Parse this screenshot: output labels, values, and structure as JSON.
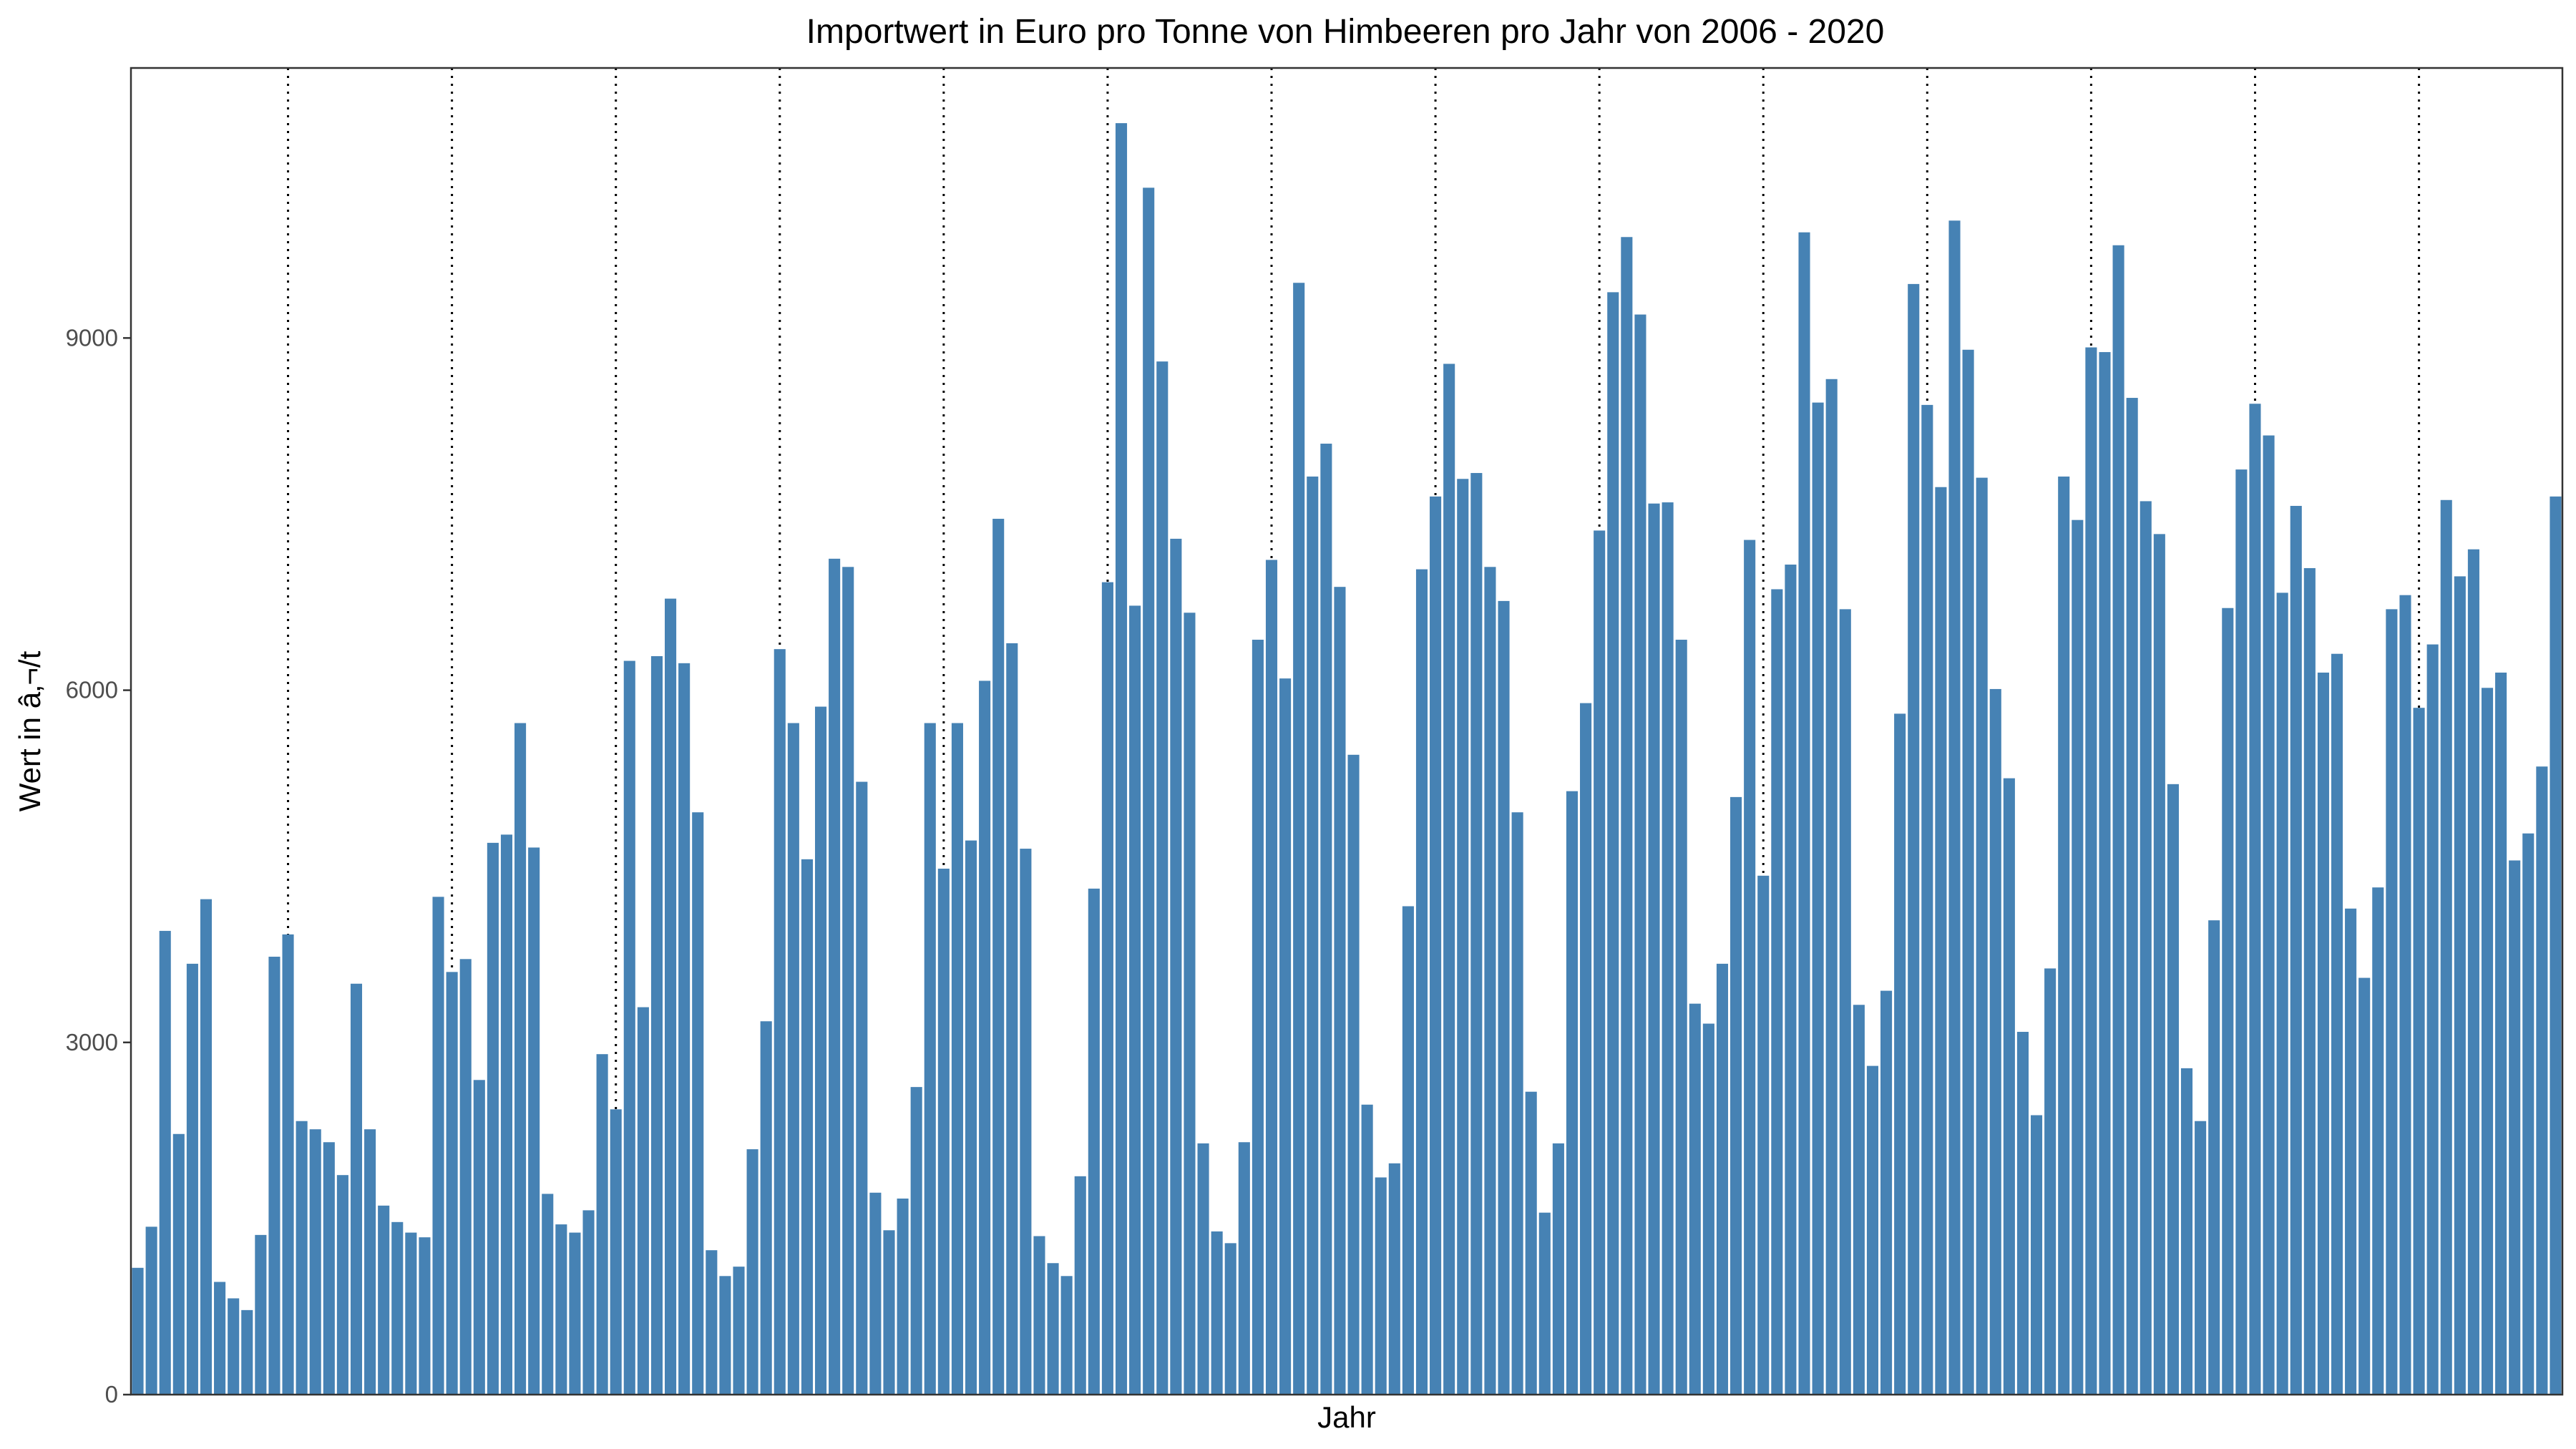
{
  "chart_data": {
    "type": "bar",
    "title": "Importwert in Euro pro Tonne von Himbeeren pro Jahr von 2006 - 2020",
    "xlabel": "Jahr",
    "ylabel": "Wert in â‚¬/t",
    "ylim": [
      0,
      11300
    ],
    "yticks": [
      0,
      3000,
      6000,
      9000
    ],
    "ytick_labels": [
      "0",
      "3000",
      "6000",
      "9000"
    ],
    "grid": false,
    "year_separators": "dotted vertical line before each new year",
    "bar_color": "#4682b4",
    "values": [
      1080,
      1430,
      3950,
      2220,
      3670,
      4220,
      960,
      820,
      720,
      1360,
      3730,
      3920,
      2330,
      2260,
      2150,
      1870,
      3500,
      2260,
      1610,
      1470,
      1380,
      1340,
      4240,
      3600,
      3710,
      2680,
      4700,
      4770,
      5720,
      4660,
      1710,
      1450,
      1380,
      1570,
      2900,
      2430,
      6250,
      3300,
      6290,
      6780,
      6230,
      4960,
      1230,
      1010,
      1090,
      2090,
      3180,
      6350,
      5720,
      4560,
      5860,
      7120,
      7050,
      5220,
      1720,
      1400,
      1670,
      2620,
      5720,
      4480,
      5720,
      4720,
      6080,
      7460,
      6400,
      4650,
      1350,
      1120,
      1010,
      1860,
      4310,
      6920,
      10830,
      6720,
      10280,
      8800,
      7290,
      6660,
      2140,
      1390,
      1290,
      2150,
      6430,
      7110,
      6100,
      9470,
      7820,
      8100,
      6880,
      5450,
      2470,
      1850,
      1970,
      4160,
      7030,
      7650,
      8780,
      7800,
      7850,
      7050,
      6760,
      4960,
      2580,
      1550,
      2140,
      5140,
      5890,
      7360,
      9390,
      9860,
      9200,
      7590,
      7600,
      6430,
      3330,
      3160,
      3670,
      5090,
      7280,
      4420,
      6860,
      7070,
      9900,
      8450,
      8650,
      6690,
      3320,
      2800,
      3440,
      5800,
      9460,
      8430,
      7730,
      10000,
      8900,
      7810,
      6010,
      5250,
      3090,
      2380,
      3630,
      7820,
      7450,
      8920,
      8880,
      9790,
      8490,
      7610,
      7330,
      5200,
      2780,
      2330,
      4040,
      6700,
      7880,
      8440,
      8170,
      6830,
      7570,
      7040,
      6150,
      6310,
      4140,
      3550,
      4320,
      6690,
      6810,
      5850,
      6390,
      7620,
      6970,
      7200,
      6020,
      6150,
      4550,
      4780,
      5350,
      7650
    ]
  }
}
